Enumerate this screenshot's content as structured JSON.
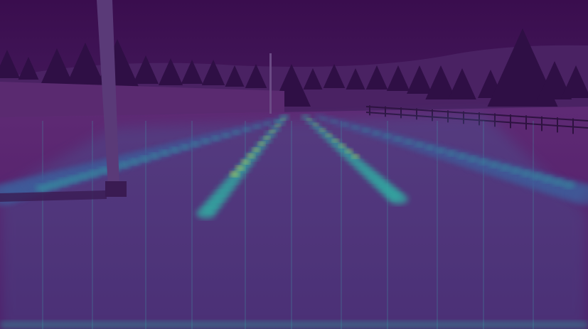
{
  "scene": {
    "palette": {
      "sky": "#3b0f52",
      "sky_top": "#3a0d4e",
      "hill": "#4a2263",
      "tree": "#2f0f45",
      "ground": "#5c2a72",
      "road": "#5a1f6e",
      "road_near": "#4f1a66",
      "heat_low": "#3d5f9c",
      "heat_mid": "#2fb6a5",
      "heat_high": "#c9e24a",
      "pole": "#5a3a78",
      "fence": "#2e1240"
    }
  }
}
